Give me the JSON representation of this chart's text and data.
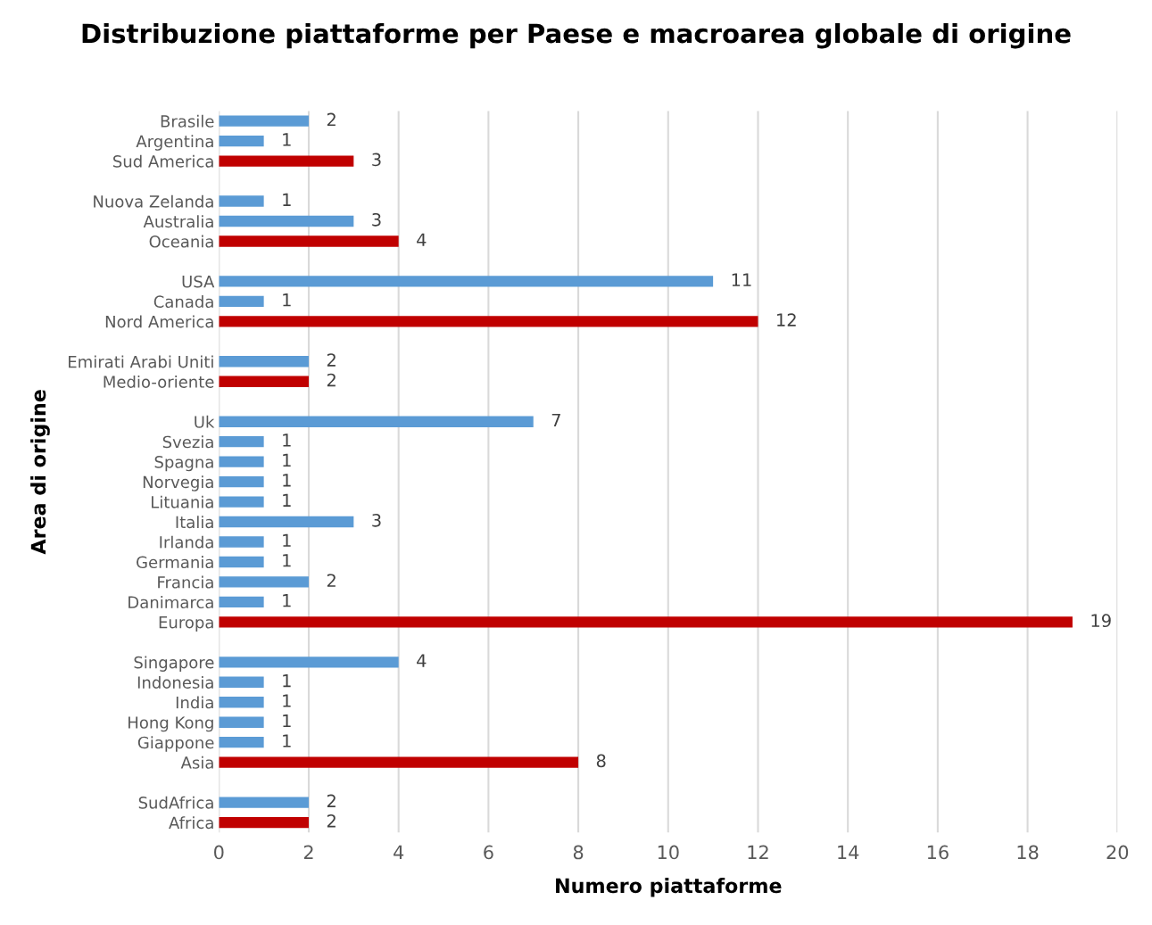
{
  "chart_data": {
    "type": "bar",
    "orientation": "horizontal",
    "title": "Distribuzione piattaforme per Paese e macroarea globale di origine",
    "xlabel": "Numero piattaforme",
    "ylabel": "Area di origine",
    "categories": [
      "Brasile",
      "Argentina",
      "Sud America",
      null,
      "Nuova Zelanda",
      "Australia",
      "Oceania",
      null,
      "USA",
      "Canada",
      "Nord America",
      null,
      "Emirati Arabi Uniti",
      "Medio-oriente",
      null,
      "Uk",
      "Svezia",
      "Spagna",
      "Norvegia",
      "Lituania",
      "Italia",
      "Irlanda",
      "Germania",
      "Francia",
      "Danimarca",
      "Europa",
      null,
      "Singapore",
      "Indonesia",
      "India",
      "Hong Kong",
      "Giappone",
      "Asia",
      null,
      "SudAfrica",
      "Africa"
    ],
    "values": [
      2,
      1,
      3,
      null,
      1,
      3,
      4,
      null,
      11,
      1,
      12,
      null,
      2,
      2,
      null,
      7,
      1,
      1,
      1,
      1,
      3,
      1,
      1,
      2,
      1,
      19,
      null,
      4,
      1,
      1,
      1,
      1,
      8,
      null,
      2,
      2
    ],
    "colors": [
      "#5b9bd5",
      "#5b9bd5",
      "#c00000",
      null,
      "#5b9bd5",
      "#5b9bd5",
      "#c00000",
      null,
      "#5b9bd5",
      "#5b9bd5",
      "#c00000",
      null,
      "#5b9bd5",
      "#c00000",
      null,
      "#5b9bd5",
      "#5b9bd5",
      "#5b9bd5",
      "#5b9bd5",
      "#5b9bd5",
      "#5b9bd5",
      "#5b9bd5",
      "#5b9bd5",
      "#5b9bd5",
      "#5b9bd5",
      "#c00000",
      null,
      "#5b9bd5",
      "#5b9bd5",
      "#5b9bd5",
      "#5b9bd5",
      "#5b9bd5",
      "#c00000",
      null,
      "#5b9bd5",
      "#c00000"
    ],
    "xlim": [
      0,
      20
    ],
    "xticks": [
      0,
      2,
      4,
      6,
      8,
      10,
      12,
      14,
      16,
      18,
      20
    ],
    "grid": "x",
    "data_labels": true,
    "legend": false
  }
}
